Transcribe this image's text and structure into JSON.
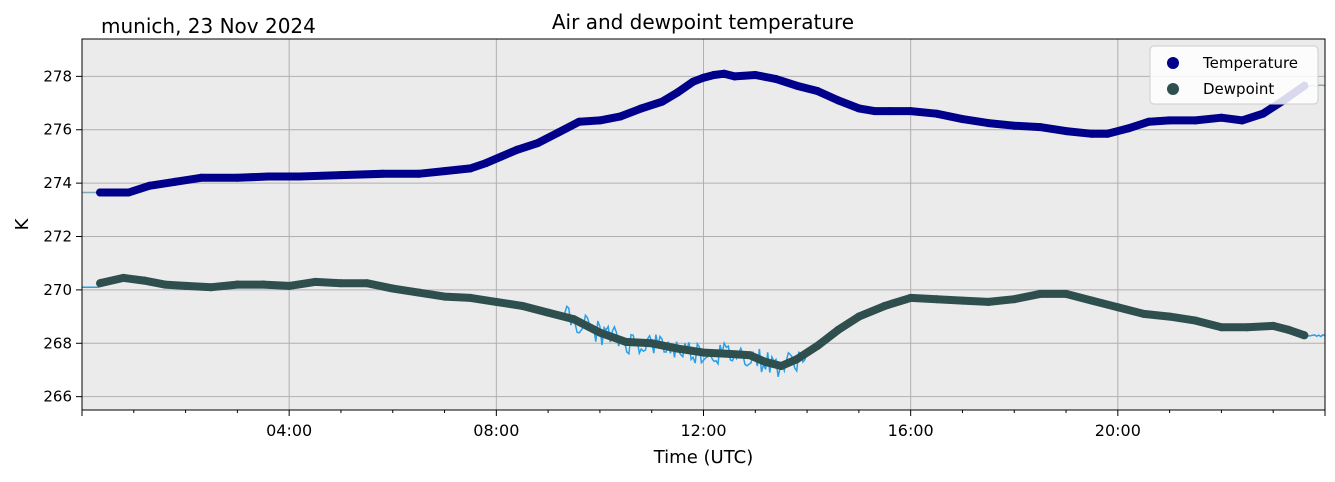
{
  "chart_data": {
    "type": "line",
    "title": "Air and dewpoint temperature",
    "subtitle": "munich, 23 Nov 2024",
    "xlabel": "Time (UTC)",
    "ylabel": "K",
    "x_unit": "hours since 00:00 UTC",
    "xlim": [
      0,
      24
    ],
    "ylim": [
      265.5,
      279.4
    ],
    "x_ticks": [
      4,
      8,
      12,
      16,
      20
    ],
    "x_tick_labels": [
      "04:00",
      "08:00",
      "12:00",
      "16:00",
      "20:00"
    ],
    "y_ticks": [
      266,
      268,
      270,
      272,
      274,
      276,
      278
    ],
    "y_tick_labels": [
      "266",
      "268",
      "270",
      "272",
      "274",
      "276",
      "278"
    ],
    "grid": true,
    "legend_position": "top-right",
    "background_color": "#ebebeb",
    "series": [
      {
        "name": "Temperature",
        "color": "#00008b",
        "raw_color": "#7aa6b2",
        "x": [
          0.35,
          0.9,
          1.3,
          1.8,
          2.3,
          3.0,
          3.6,
          4.2,
          5.0,
          5.8,
          6.5,
          7.0,
          7.5,
          7.8,
          8.1,
          8.4,
          8.8,
          9.2,
          9.6,
          10.0,
          10.4,
          10.8,
          11.2,
          11.5,
          11.8,
          12.0,
          12.2,
          12.4,
          12.6,
          13.0,
          13.4,
          13.8,
          14.2,
          14.6,
          15.0,
          15.3,
          15.6,
          16.0,
          16.5,
          17.0,
          17.5,
          18.0,
          18.5,
          19.0,
          19.5,
          19.8,
          20.2,
          20.6,
          21.0,
          21.5,
          22.0,
          22.4,
          22.8,
          23.2,
          23.6
        ],
        "y": [
          273.65,
          273.65,
          273.9,
          274.05,
          274.2,
          274.2,
          274.25,
          274.25,
          274.3,
          274.35,
          274.35,
          274.45,
          274.55,
          274.75,
          275.0,
          275.25,
          275.5,
          275.9,
          276.3,
          276.35,
          276.5,
          276.8,
          277.05,
          277.4,
          277.8,
          277.95,
          278.05,
          278.1,
          278.0,
          278.05,
          277.9,
          277.65,
          277.45,
          277.1,
          276.8,
          276.7,
          276.7,
          276.7,
          276.6,
          276.4,
          276.25,
          276.15,
          276.1,
          275.95,
          275.85,
          275.85,
          276.05,
          276.3,
          276.35,
          276.35,
          276.45,
          276.35,
          276.6,
          277.1,
          277.65
        ]
      },
      {
        "name": "Dewpoint",
        "color": "#2f4f4f",
        "raw_color": "#1e9be8",
        "x": [
          0.35,
          0.8,
          1.2,
          1.6,
          2.0,
          2.5,
          3.0,
          3.5,
          4.0,
          4.5,
          5.0,
          5.5,
          6.0,
          6.5,
          7.0,
          7.5,
          8.0,
          8.5,
          9.0,
          9.5,
          10.0,
          10.5,
          11.0,
          11.5,
          12.0,
          12.5,
          12.9,
          13.2,
          13.5,
          13.8,
          14.2,
          14.6,
          15.0,
          15.5,
          16.0,
          16.5,
          17.0,
          17.5,
          18.0,
          18.5,
          19.0,
          19.5,
          20.0,
          20.5,
          21.0,
          21.5,
          22.0,
          22.5,
          23.0,
          23.3,
          23.6
        ],
        "y": [
          270.25,
          270.45,
          270.35,
          270.2,
          270.15,
          270.1,
          270.2,
          270.2,
          270.15,
          270.3,
          270.25,
          270.25,
          270.05,
          269.9,
          269.75,
          269.7,
          269.55,
          269.4,
          269.15,
          268.9,
          268.4,
          268.05,
          268.0,
          267.8,
          267.65,
          267.6,
          267.55,
          267.3,
          267.15,
          267.4,
          267.9,
          268.5,
          269.0,
          269.4,
          269.7,
          269.65,
          269.6,
          269.55,
          269.65,
          269.85,
          269.85,
          269.6,
          269.35,
          269.1,
          269.0,
          268.85,
          268.6,
          268.6,
          268.65,
          268.5,
          268.3
        ]
      }
    ]
  }
}
